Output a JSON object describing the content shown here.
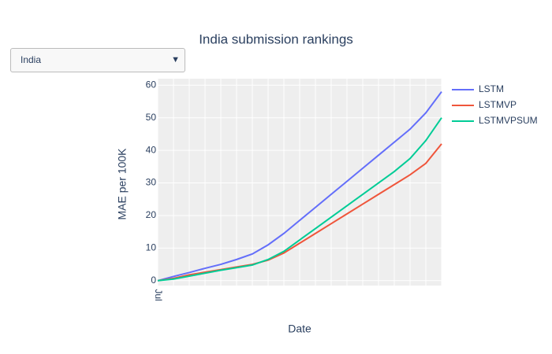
{
  "dropdown": {
    "selected": "India"
  },
  "chart_data": {
    "type": "line",
    "title": "India submission rankings",
    "x_label": "Date",
    "y_label": "MAE per 100K",
    "categories": [
      "Jul",
      null,
      null,
      null,
      null,
      null,
      null,
      null,
      null,
      null,
      null,
      null,
      null,
      null,
      null,
      null,
      null,
      null,
      null
    ],
    "series": [
      {
        "name": "LSTM",
        "color": "#636efa",
        "values": [
          0,
          1.3,
          2.5,
          3.8,
          5,
          6.5,
          8.2,
          11,
          14.5,
          18.5,
          22.5,
          26.5,
          30.5,
          34.5,
          38.5,
          42.5,
          46.5,
          51.5,
          58
        ]
      },
      {
        "name": "LSTMVP",
        "color": "#ef553b",
        "values": [
          0,
          0.7,
          1.8,
          2.6,
          3.4,
          4.2,
          5,
          6.3,
          8.5,
          11.5,
          14.5,
          17.5,
          20.5,
          23.5,
          26.5,
          29.5,
          32.5,
          36,
          42
        ]
      },
      {
        "name": "LSTMVPSUM",
        "color": "#00cc96",
        "values": [
          0,
          0.5,
          1.4,
          2.3,
          3.2,
          4,
          4.8,
          6.5,
          9,
          12.5,
          16,
          19.5,
          23,
          26.5,
          30,
          33.5,
          37.5,
          43,
          50
        ]
      }
    ],
    "ylim": [
      -1.5,
      62
    ],
    "yticks": [
      0,
      10,
      20,
      30,
      40,
      50,
      60
    ],
    "grid": true
  }
}
